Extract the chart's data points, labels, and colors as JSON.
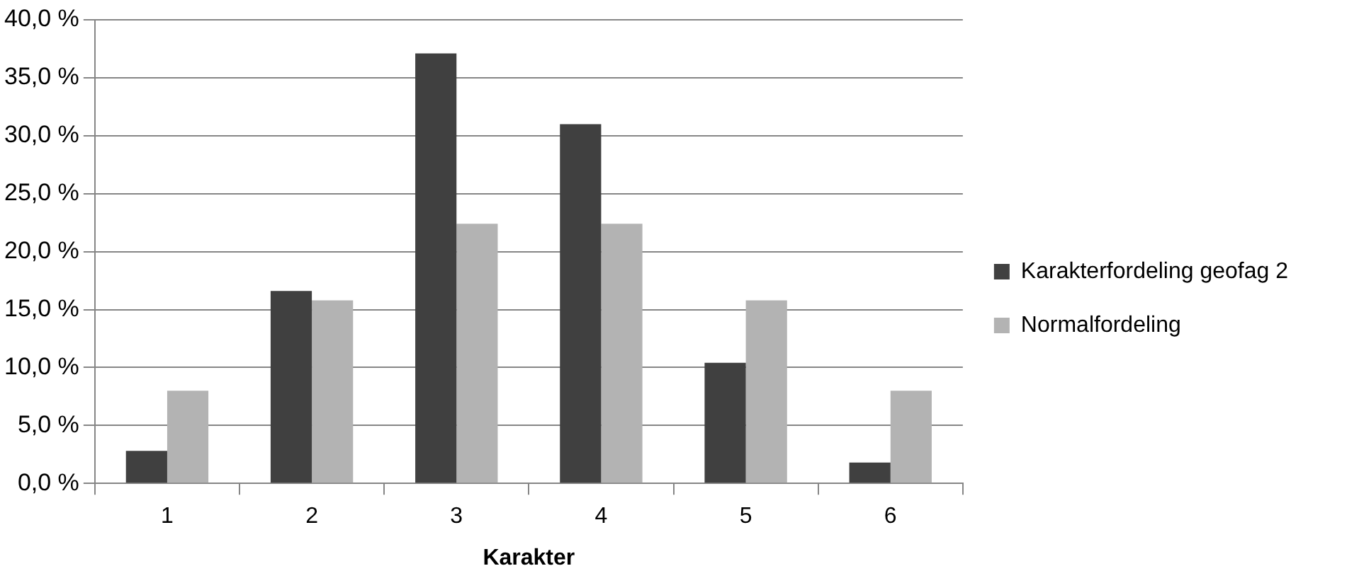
{
  "chart_data": {
    "type": "bar",
    "xlabel": "Karakter",
    "categories": [
      "1",
      "2",
      "3",
      "4",
      "5",
      "6"
    ],
    "series": [
      {
        "name": "Karakterfordeling geofag 2",
        "color": "#404040",
        "values": [
          2.8,
          16.6,
          37.1,
          31.0,
          10.4,
          1.8
        ]
      },
      {
        "name": "Normalfordeling",
        "color": "#b3b3b3",
        "values": [
          8.0,
          15.8,
          22.4,
          22.4,
          15.8,
          8.0
        ]
      }
    ],
    "ylim": [
      0,
      40
    ],
    "yticks": [
      {
        "value": 0,
        "label": "0,0 %"
      },
      {
        "value": 5,
        "label": "5,0 %"
      },
      {
        "value": 10,
        "label": "10,0 %"
      },
      {
        "value": 15,
        "label": "15,0 %"
      },
      {
        "value": 20,
        "label": "20,0 %"
      },
      {
        "value": 25,
        "label": "25,0 %"
      },
      {
        "value": 30,
        "label": "30,0 %"
      },
      {
        "value": 35,
        "label": "35,0 %"
      },
      {
        "value": 40,
        "label": "40,0 %"
      }
    ],
    "grid": "y",
    "legend": "right"
  }
}
